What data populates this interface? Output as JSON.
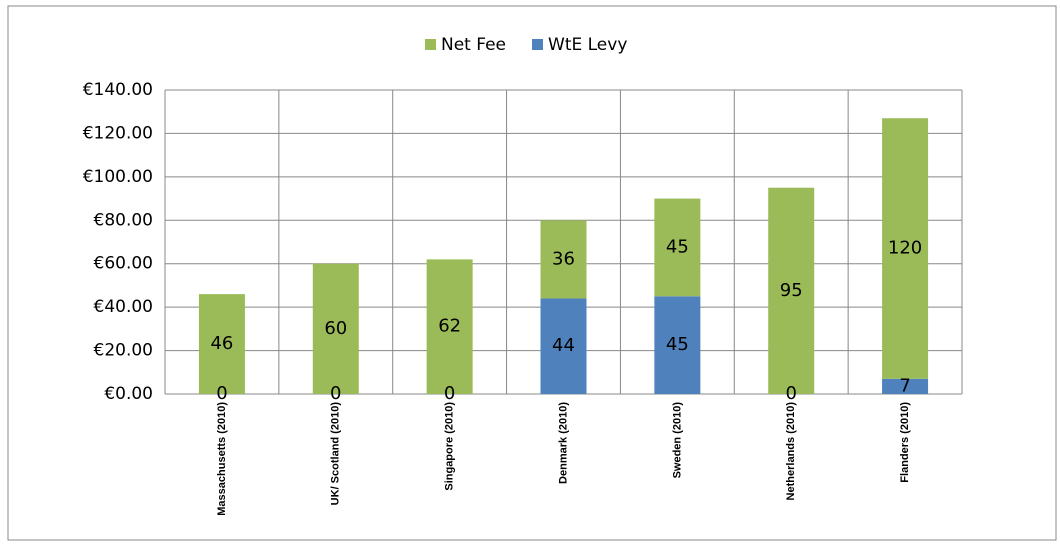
{
  "chart_data": {
    "type": "stacked_bar",
    "categories": [
      "Massachusetts (2010)",
      "UK/ Scotland (2010)",
      "Singapore (2010)",
      "Denmark (2010)",
      "Sweden (2010)",
      "Netherlands (2010)",
      "Flanders (2010)"
    ],
    "series": [
      {
        "name": "WtE Levy",
        "color": "#4f81bd",
        "values": [
          0,
          0,
          0,
          44,
          45,
          0,
          7
        ]
      },
      {
        "name": "Net Fee",
        "color": "#9bbb59",
        "values": [
          46,
          60,
          62,
          36,
          45,
          95,
          120
        ]
      }
    ],
    "ylim": [
      0,
      140
    ],
    "yticks": [
      {
        "value": 0,
        "label": "€0.00"
      },
      {
        "value": 20,
        "label": "€20.00"
      },
      {
        "value": 40,
        "label": "€40.00"
      },
      {
        "value": 60,
        "label": "€60.00"
      },
      {
        "value": 80,
        "label": "€80.00"
      },
      {
        "value": 100,
        "label": "€100.00"
      },
      {
        "value": 120,
        "label": "€120.00"
      },
      {
        "value": 140,
        "label": "€140.00"
      }
    ],
    "grid": true,
    "legend": "top"
  }
}
